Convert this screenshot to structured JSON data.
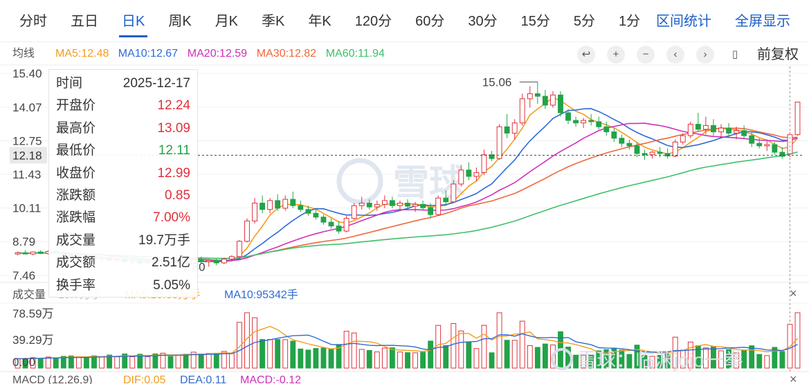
{
  "tabs": [
    {
      "label": "分时",
      "active": false
    },
    {
      "label": "五日",
      "active": false
    },
    {
      "label": "日K",
      "active": true
    },
    {
      "label": "周K",
      "active": false
    },
    {
      "label": "月K",
      "active": false
    },
    {
      "label": "季K",
      "active": false
    },
    {
      "label": "年K",
      "active": false
    },
    {
      "label": "120分",
      "active": false
    },
    {
      "label": "60分",
      "active": false
    },
    {
      "label": "30分",
      "active": false
    },
    {
      "label": "15分",
      "active": false
    },
    {
      "label": "5分",
      "active": false
    },
    {
      "label": "1分",
      "active": false
    }
  ],
  "right_tabs": {
    "interval_stats": "区间统计",
    "fullscreen": "全屏显示"
  },
  "ma_legend": {
    "title": "均线",
    "items": [
      {
        "label": "MA5:12.48",
        "color": "#f39c1e"
      },
      {
        "label": "MA10:12.67",
        "color": "#2f6ad6"
      },
      {
        "label": "MA20:12.59",
        "color": "#d02fb8"
      },
      {
        "label": "MA30:12.82",
        "color": "#f0673a"
      },
      {
        "label": "MA60:11.94",
        "color": "#3fbf6a"
      }
    ]
  },
  "controls": {
    "back": "↩",
    "zoom_in": "+",
    "zoom_out": "−",
    "prev": "‹",
    "next": "›",
    "candle": "▯",
    "adjust": "前复权"
  },
  "tooltip": {
    "rows": [
      {
        "label": "时间",
        "value": "2025-12-17",
        "tone": "plain"
      },
      {
        "label": "开盘价",
        "value": "12.24",
        "tone": "red"
      },
      {
        "label": "最高价",
        "value": "13.09",
        "tone": "red"
      },
      {
        "label": "最低价",
        "value": "12.11",
        "tone": "green"
      },
      {
        "label": "收盘价",
        "value": "12.99",
        "tone": "red"
      },
      {
        "label": "涨跌额",
        "value": "0.85",
        "tone": "red"
      },
      {
        "label": "涨跌幅",
        "value": "7.00%",
        "tone": "red"
      },
      {
        "label": "成交量",
        "value": "19.7万手",
        "tone": "plain"
      },
      {
        "label": "成交额",
        "value": "2.51亿",
        "tone": "plain"
      },
      {
        "label": "换手率",
        "value": "5.05%",
        "tone": "plain"
      }
    ]
  },
  "volume_legend": {
    "title": "成交量",
    "current": "19.7万手",
    "ma5": "MA5:10.35万手",
    "ma10": "MA10:95342手",
    "ma5_color": "#f39c1e",
    "ma10_color": "#2f6ad6"
  },
  "macd_legend": {
    "title": "MACD (12,26,9)",
    "dif": "DIF:0.05",
    "dea": "DEA:0.11",
    "macd": "MACD:-0.12"
  },
  "watermark": "雪球",
  "footer_watermark": "雪球：临渊jojo一拳",
  "close_icon": "×",
  "colors": {
    "up": "#e0303a",
    "down": "#22a348",
    "accent": "#1c5fc8",
    "crosshair": "#444444"
  },
  "chart_data": {
    "type": "candlestick",
    "price_axis": {
      "ticks": [
        "15.40",
        "14.07",
        "12.75",
        "11.43",
        "10.11",
        "8.79",
        "7.46"
      ],
      "min": 7.46,
      "max": 15.4
    },
    "crosshair_price": "12.18",
    "high_label": "15.06",
    "low_label": "7.80",
    "candles": [
      [
        8.3,
        8.4,
        8.25,
        8.35
      ],
      [
        8.35,
        8.45,
        8.3,
        8.3
      ],
      [
        8.3,
        8.4,
        8.25,
        8.38
      ],
      [
        8.38,
        8.45,
        8.3,
        8.32
      ],
      [
        8.32,
        8.45,
        8.28,
        8.4
      ],
      [
        8.4,
        8.48,
        8.3,
        8.35
      ],
      [
        8.35,
        8.4,
        8.2,
        8.28
      ],
      [
        8.28,
        8.35,
        8.15,
        8.2
      ],
      [
        8.2,
        8.3,
        8.1,
        8.25
      ],
      [
        8.25,
        8.32,
        8.15,
        8.18
      ],
      [
        8.18,
        8.25,
        8.05,
        8.1
      ],
      [
        8.1,
        8.2,
        8.0,
        8.15
      ],
      [
        8.15,
        8.2,
        8.0,
        8.05
      ],
      [
        8.05,
        8.15,
        7.95,
        8.1
      ],
      [
        8.1,
        8.18,
        7.95,
        8.0
      ],
      [
        8.0,
        8.1,
        7.9,
        8.05
      ],
      [
        8.05,
        8.12,
        7.9,
        7.95
      ],
      [
        7.95,
        8.05,
        7.85,
        8.0
      ],
      [
        8.0,
        8.1,
        7.85,
        7.92
      ],
      [
        7.92,
        8.05,
        7.8,
        8.02
      ],
      [
        8.02,
        8.1,
        7.88,
        7.98
      ],
      [
        7.98,
        8.08,
        7.85,
        8.05
      ],
      [
        8.05,
        8.12,
        7.9,
        7.95
      ],
      [
        7.95,
        8.1,
        7.85,
        8.08
      ],
      [
        8.08,
        8.2,
        7.95,
        8.0
      ],
      [
        8.0,
        8.1,
        7.8,
        8.05
      ],
      [
        8.05,
        8.1,
        7.85,
        7.95
      ],
      [
        7.95,
        8.15,
        7.9,
        8.1
      ],
      [
        8.1,
        8.25,
        8.0,
        8.2
      ],
      [
        8.2,
        8.85,
        8.15,
        8.8
      ],
      [
        8.8,
        9.7,
        8.75,
        9.6
      ],
      [
        9.6,
        10.5,
        9.5,
        10.3
      ],
      [
        10.3,
        10.6,
        9.9,
        10.05
      ],
      [
        10.05,
        10.5,
        9.9,
        10.4
      ],
      [
        10.4,
        10.65,
        10.0,
        10.1
      ],
      [
        10.1,
        10.6,
        10.0,
        10.45
      ],
      [
        10.45,
        10.75,
        10.1,
        10.2
      ],
      [
        10.2,
        10.4,
        9.95,
        10.05
      ],
      [
        10.05,
        10.2,
        9.8,
        9.9
      ],
      [
        9.9,
        10.1,
        9.65,
        9.75
      ],
      [
        9.75,
        9.85,
        9.45,
        9.55
      ],
      [
        9.55,
        9.7,
        9.3,
        9.4
      ],
      [
        9.4,
        9.6,
        9.1,
        9.2
      ],
      [
        9.2,
        9.8,
        9.15,
        9.7
      ],
      [
        9.7,
        10.3,
        9.65,
        10.2
      ],
      [
        10.2,
        10.55,
        10.05,
        10.3
      ],
      [
        10.3,
        10.45,
        10.05,
        10.15
      ],
      [
        10.15,
        10.4,
        10.0,
        10.25
      ],
      [
        10.25,
        10.6,
        10.1,
        10.4
      ],
      [
        10.4,
        10.55,
        10.1,
        10.2
      ],
      [
        10.2,
        10.4,
        10.0,
        10.3
      ],
      [
        10.3,
        10.45,
        10.1,
        10.18
      ],
      [
        10.18,
        10.35,
        9.95,
        10.25
      ],
      [
        10.25,
        10.4,
        10.05,
        10.12
      ],
      [
        10.12,
        10.3,
        9.7,
        9.85
      ],
      [
        9.85,
        10.6,
        9.8,
        10.5
      ],
      [
        10.5,
        10.8,
        10.2,
        10.35
      ],
      [
        10.35,
        11.2,
        10.3,
        11.05
      ],
      [
        11.05,
        11.8,
        10.95,
        11.6
      ],
      [
        11.6,
        11.9,
        11.2,
        11.35
      ],
      [
        11.35,
        11.7,
        11.15,
        11.5
      ],
      [
        11.5,
        12.4,
        11.4,
        12.2
      ],
      [
        12.2,
        12.35,
        11.95,
        12.05
      ],
      [
        12.05,
        13.4,
        12.0,
        13.3
      ],
      [
        13.3,
        13.8,
        12.85,
        13.05
      ],
      [
        13.05,
        13.6,
        12.8,
        13.45
      ],
      [
        13.45,
        14.6,
        13.35,
        14.4
      ],
      [
        14.4,
        14.9,
        14.05,
        14.6
      ],
      [
        14.6,
        15.06,
        14.2,
        14.5
      ],
      [
        14.5,
        14.75,
        14.0,
        14.15
      ],
      [
        14.15,
        14.7,
        14.05,
        14.55
      ],
      [
        14.55,
        14.7,
        13.7,
        13.85
      ],
      [
        13.85,
        14.0,
        13.4,
        13.55
      ],
      [
        13.55,
        13.7,
        13.3,
        13.45
      ],
      [
        13.45,
        13.65,
        13.25,
        13.55
      ],
      [
        13.55,
        13.8,
        13.35,
        13.5
      ],
      [
        13.5,
        13.7,
        13.2,
        13.3
      ],
      [
        13.3,
        13.5,
        12.95,
        13.1
      ],
      [
        13.1,
        13.25,
        12.7,
        12.85
      ],
      [
        12.85,
        13.0,
        12.5,
        12.65
      ],
      [
        12.65,
        12.8,
        12.4,
        12.55
      ],
      [
        12.55,
        12.7,
        12.1,
        12.25
      ],
      [
        12.25,
        12.4,
        12.0,
        12.2
      ],
      [
        12.2,
        12.35,
        12.05,
        12.3
      ],
      [
        12.3,
        12.5,
        12.1,
        12.25
      ],
      [
        12.25,
        12.45,
        12.05,
        12.15
      ],
      [
        12.15,
        12.8,
        12.1,
        12.7
      ],
      [
        12.7,
        13.05,
        12.6,
        12.95
      ],
      [
        12.95,
        13.5,
        12.85,
        13.4
      ],
      [
        13.4,
        13.85,
        13.1,
        13.2
      ],
      [
        13.2,
        13.7,
        13.0,
        13.35
      ],
      [
        13.35,
        13.6,
        12.95,
        13.1
      ],
      [
        13.1,
        13.4,
        12.85,
        13.25
      ],
      [
        13.25,
        13.45,
        12.9,
        13.05
      ],
      [
        13.05,
        13.3,
        12.8,
        13.15
      ],
      [
        13.15,
        13.35,
        12.85,
        12.95
      ],
      [
        12.95,
        13.1,
        12.5,
        12.65
      ],
      [
        12.65,
        12.85,
        12.45,
        12.55
      ],
      [
        12.55,
        12.75,
        12.35,
        12.6
      ],
      [
        12.6,
        12.7,
        12.2,
        12.3
      ],
      [
        12.3,
        12.5,
        12.05,
        12.14
      ],
      [
        12.24,
        13.09,
        12.11,
        12.99
      ],
      [
        12.99,
        14.27,
        12.95,
        14.27
      ]
    ],
    "volume_axis": {
      "ticks": [
        "78.59万",
        "39.29万",
        "0.00"
      ],
      "max": 78.59
    },
    "volume_unit": "万手"
  }
}
